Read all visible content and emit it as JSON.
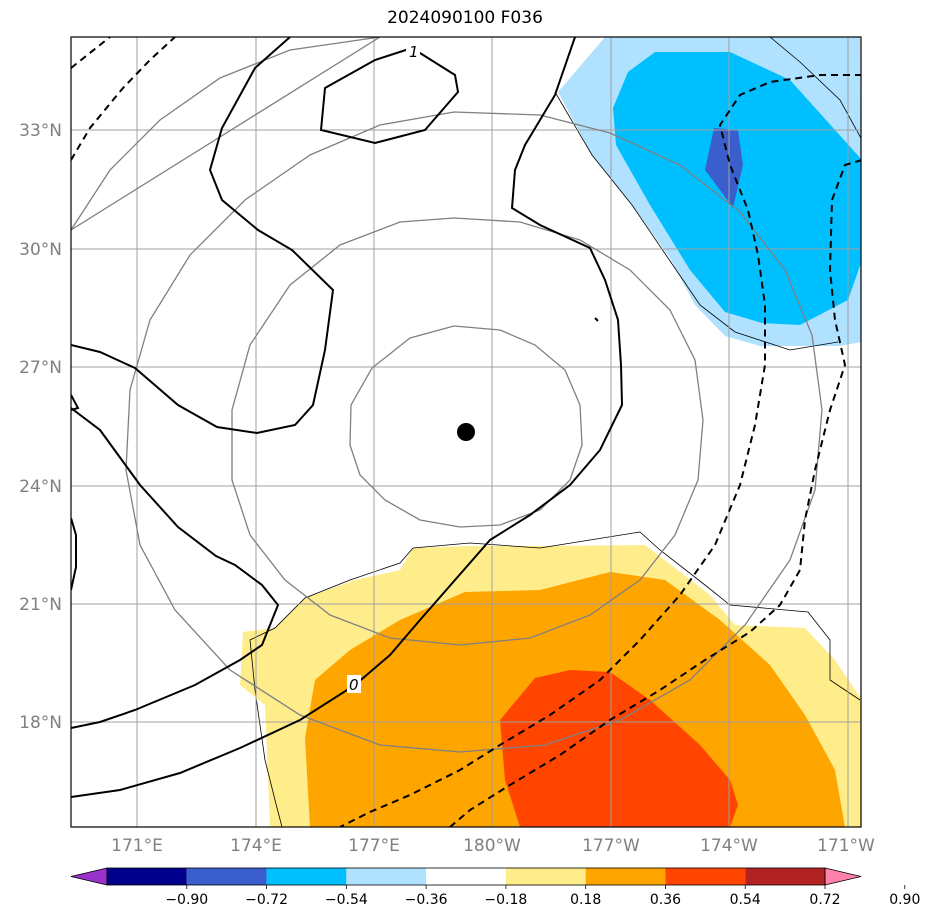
{
  "title": "2024090100 F036",
  "latitude_labels": [
    "33°N",
    "30°N",
    "27°N",
    "24°N",
    "21°N",
    "18°N"
  ],
  "longitude_labels": [
    "171°E",
    "174°E",
    "177°E",
    "180°W",
    "177°W",
    "174°W",
    "171°W"
  ],
  "contour_labels": {
    "one": "1",
    "zero": "0"
  },
  "colorbar": {
    "tick_labels": [
      "−0.90",
      "−0.72",
      "−0.54",
      "−0.36",
      "−0.18",
      "0.18",
      "0.36",
      "0.54",
      "0.72",
      "0.90"
    ],
    "colors": [
      "#9932cc",
      "#00008b",
      "#3a5fcd",
      "#00bfff",
      "#b0e2ff",
      "#ffffff",
      "#ffec8b",
      "#ffa500",
      "#ff4500",
      "#b22222",
      "#ff82ab"
    ]
  },
  "colors": {
    "frame": "#000000",
    "grid": "#a0a0a0",
    "range_rings": "#808080",
    "contour": "#000000"
  }
}
